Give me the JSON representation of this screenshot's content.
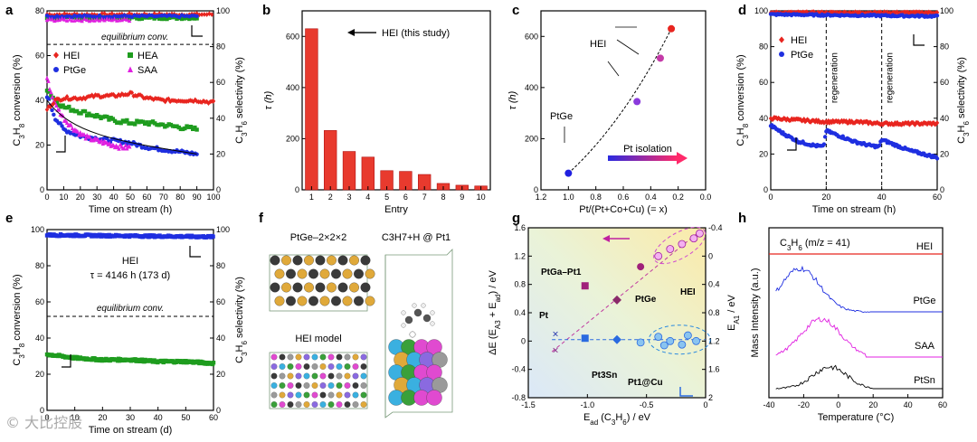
{
  "panels": {
    "a": "a",
    "b": "b",
    "c": "c",
    "d": "d",
    "e": "e",
    "f": "f",
    "g": "g",
    "h": "h"
  },
  "colors": {
    "hei": "#e8251f",
    "ptge": "#1f2fe0",
    "hea": "#1e9c1e",
    "saa": "#e020e0",
    "ptsn": "#000000",
    "bar": "#e83a2e"
  },
  "chart_data": [
    {
      "id": "a",
      "type": "scatter",
      "xlabel": "Time on stream (h)",
      "ylabel_left": "C3H8 conversion (%)",
      "ylabel_right": "C3H6 selectivity (%)",
      "xlim": [
        0,
        100
      ],
      "ylim_left": [
        0,
        80
      ],
      "ylim_right": [
        0,
        100
      ],
      "x_ticks": [
        "0",
        "10",
        "20",
        "30",
        "40",
        "50",
        "60",
        "70",
        "80",
        "90",
        "100"
      ],
      "y_ticks_left": [
        "0",
        "20",
        "40",
        "60",
        "80"
      ],
      "y_ticks_right": [
        "0",
        "20",
        "40",
        "60",
        "80",
        "100"
      ],
      "annotation": "equilibrium conv.",
      "equilibrium": 65,
      "legend": [
        "HEI",
        "HEA",
        "PtGe",
        "SAA"
      ],
      "series": [
        {
          "name": "HEI conversion",
          "x": [
            0,
            5,
            10,
            20,
            30,
            40,
            50,
            60,
            70,
            80,
            90,
            100
          ],
          "values": [
            36,
            40,
            41,
            41,
            42,
            42,
            43,
            41,
            40,
            40,
            40,
            39
          ]
        },
        {
          "name": "HEA conversion",
          "x": [
            0,
            5,
            10,
            20,
            30,
            40,
            50,
            60,
            70,
            80,
            90
          ],
          "values": [
            45,
            40,
            37,
            35,
            33,
            31,
            30,
            30,
            29,
            28,
            27
          ]
        },
        {
          "name": "PtGe conversion",
          "x": [
            0,
            5,
            10,
            20,
            30,
            40,
            50,
            60,
            70,
            80,
            90
          ],
          "values": [
            42,
            32,
            27,
            24,
            23,
            22,
            21,
            19,
            18,
            17,
            16
          ]
        },
        {
          "name": "SAA conversion",
          "x": [
            0,
            3,
            5,
            10,
            15,
            20,
            25,
            30,
            35,
            40,
            45,
            50
          ],
          "values": [
            50,
            42,
            38,
            32,
            28,
            25,
            23,
            22,
            21,
            20,
            19,
            19
          ]
        },
        {
          "name": "HEI selectivity",
          "x": [
            0,
            20,
            40,
            60,
            80,
            100
          ],
          "values": [
            98,
            98,
            98,
            98,
            98,
            98
          ]
        },
        {
          "name": "HEA selectivity",
          "x": [
            0,
            20,
            40,
            60,
            80,
            90
          ],
          "values": [
            96,
            96,
            96,
            96,
            96,
            96
          ]
        },
        {
          "name": "PtGe selectivity",
          "x": [
            0,
            20,
            40,
            60,
            80,
            90
          ],
          "values": [
            97,
            97,
            97,
            97,
            97,
            97
          ]
        },
        {
          "name": "SAA selectivity",
          "x": [
            0,
            10,
            20,
            30,
            40,
            50
          ],
          "values": [
            95,
            95,
            95,
            95,
            95,
            95
          ]
        }
      ]
    },
    {
      "id": "b",
      "type": "bar",
      "xlabel": "Entry",
      "ylabel": "τ (h)",
      "categories": [
        "1",
        "2",
        "3",
        "4",
        "5",
        "6",
        "7",
        "8",
        "9",
        "10"
      ],
      "values": [
        630,
        232,
        150,
        128,
        75,
        72,
        60,
        25,
        18,
        15
      ],
      "ylim": [
        0,
        700
      ],
      "y_ticks": [
        "0",
        "200",
        "400",
        "600"
      ],
      "annotation": "HEI (this study)"
    },
    {
      "id": "c",
      "type": "scatter",
      "xlabel": "Pt/(Pt+Co+Cu) (= x)",
      "ylabel": "τ (h)",
      "xlim": [
        1.2,
        0
      ],
      "ylim": [
        0,
        700
      ],
      "x_ticks": [
        "1.2",
        "1.0",
        "0.8",
        "0.6",
        "0.4",
        "0.2",
        "0.0"
      ],
      "y_ticks": [
        "0",
        "200",
        "400",
        "600"
      ],
      "points": [
        {
          "x": 1.0,
          "y": 65,
          "color": "#2020e0"
        },
        {
          "x": 0.5,
          "y": 345,
          "color": "#8a3adc"
        },
        {
          "x": 0.33,
          "y": 515,
          "color": "#c43aa8"
        },
        {
          "x": 0.25,
          "y": 630,
          "color": "#e8251f"
        }
      ],
      "labels": {
        "hei": "HEI",
        "ptge": "PtGe",
        "arrow": "Pt isolation"
      }
    },
    {
      "id": "d",
      "type": "scatter",
      "xlabel": "Time on stream (h)",
      "ylabel_left": "C3H8 conversion (%)",
      "ylabel_right": "C3H6 selectivity (%)",
      "xlim": [
        0,
        60
      ],
      "ylim": [
        0,
        100
      ],
      "x_ticks": [
        "0",
        "20",
        "40",
        "60"
      ],
      "y_ticks": [
        "0",
        "20",
        "40",
        "60",
        "80",
        "100"
      ],
      "legend": [
        "HEI",
        "PtGe"
      ],
      "regeneration_label": "regeneration",
      "series": [
        {
          "name": "HEI conversion",
          "x": [
            0,
            10,
            20,
            30,
            40,
            50,
            60
          ],
          "values": [
            40,
            39,
            38,
            38,
            37,
            37,
            37
          ]
        },
        {
          "name": "PtGe conversion",
          "x": [
            0,
            5,
            10,
            15,
            19,
            20,
            25,
            30,
            35,
            39,
            40,
            45,
            50,
            55,
            60
          ],
          "values": [
            36,
            31,
            27,
            25,
            24,
            33,
            30,
            27,
            25,
            24,
            28,
            25,
            22,
            20,
            18
          ]
        },
        {
          "name": "HEI selectivity",
          "x": [
            0,
            60
          ],
          "values": [
            99,
            99
          ]
        },
        {
          "name": "PtGe selectivity",
          "x": [
            0,
            60
          ],
          "values": [
            98,
            97
          ]
        }
      ]
    },
    {
      "id": "e",
      "type": "scatter",
      "xlabel": "Time on stream (d)",
      "ylabel_left": "C3H8 conversion (%)",
      "ylabel_right": "C3H6 selectivity (%)",
      "xlim": [
        0,
        60
      ],
      "ylim": [
        0,
        100
      ],
      "x_ticks": [
        "0",
        "10",
        "20",
        "30",
        "40",
        "50",
        "60"
      ],
      "y_ticks": [
        "0",
        "20",
        "40",
        "60",
        "80",
        "100"
      ],
      "annotation": "equilibrium conv.",
      "equilibrium": 52,
      "title_lines": [
        "HEI",
        "τ = 4146 h (173 d)"
      ],
      "series": [
        {
          "name": "HEI conversion",
          "x": [
            0,
            5,
            10,
            20,
            30,
            40,
            50,
            60
          ],
          "values": [
            31,
            30,
            29,
            28,
            28,
            27,
            27,
            26
          ]
        },
        {
          "name": "HEI selectivity",
          "x": [
            0,
            60
          ],
          "values": [
            97,
            96
          ]
        }
      ]
    },
    {
      "id": "g",
      "type": "scatter",
      "xlabel": "Ead (C3H6) / eV",
      "ylabel_left": "ΔE (EA3 + Ead) / eV",
      "ylabel_right": "EA1 / eV",
      "xlim": [
        -1.5,
        0
      ],
      "ylim_left": [
        -0.8,
        1.6
      ],
      "ylim_right": [
        2,
        -0.4
      ],
      "x_ticks": [
        "-1.5",
        "-1.0",
        "-0.5",
        "0"
      ],
      "y_ticks_left": [
        "-0.8",
        "-0.4",
        "0",
        "0.4",
        "0.8",
        "1.2",
        "1.6"
      ],
      "y_ticks_right": [
        "-0.4",
        "0",
        "0.4",
        "0.8",
        "1.2",
        "1.6",
        "2"
      ],
      "labels": [
        "PtGa–Pt1",
        "Pt",
        "PtGe",
        "HEI",
        "Pt3Sn",
        "Pt1@Cu"
      ],
      "series": [
        {
          "name": "ΔE magenta",
          "points": [
            [
              -1.27,
              -0.13
            ],
            [
              -1.02,
              0.78
            ],
            [
              -0.75,
              0.58
            ],
            [
              -0.55,
              1.05
            ],
            [
              -0.4,
              1.2
            ],
            [
              -0.3,
              1.3
            ],
            [
              -0.2,
              1.37
            ],
            [
              -0.1,
              1.45
            ],
            [
              -0.05,
              1.52
            ]
          ]
        },
        {
          "name": "EA1 blue",
          "points": [
            [
              -1.27,
              1.1
            ],
            [
              -1.02,
              1.16
            ],
            [
              -0.75,
              1.18
            ],
            [
              -0.55,
              1.22
            ],
            [
              -0.4,
              1.16
            ],
            [
              -0.3,
              1.2
            ],
            [
              -0.2,
              1.25
            ],
            [
              -0.15,
              1.12
            ],
            [
              -0.08,
              1.2
            ]
          ]
        }
      ]
    },
    {
      "id": "h",
      "type": "line",
      "title": "C3H6 (m/z = 41)",
      "xlabel": "Temperature (°C)",
      "ylabel": "Mass Intensity (a.u.)",
      "xlim": [
        -40,
        60
      ],
      "x_ticks": [
        "-40",
        "-20",
        "0",
        "20",
        "40",
        "60"
      ],
      "series": [
        {
          "name": "HEI",
          "values": [
            0,
            0,
            0,
            0,
            0
          ]
        },
        {
          "name": "PtGe",
          "peak_temperature": -22
        },
        {
          "name": "SAA",
          "peak_temperature": -10
        },
        {
          "name": "PtSn",
          "peak_temperature": -5
        }
      ]
    }
  ],
  "f": {
    "ptge_title": "PtGe–2×2×2",
    "adsorb_title": "C3H7+H @ Pt1",
    "hei_model": "HEI model"
  }
}
